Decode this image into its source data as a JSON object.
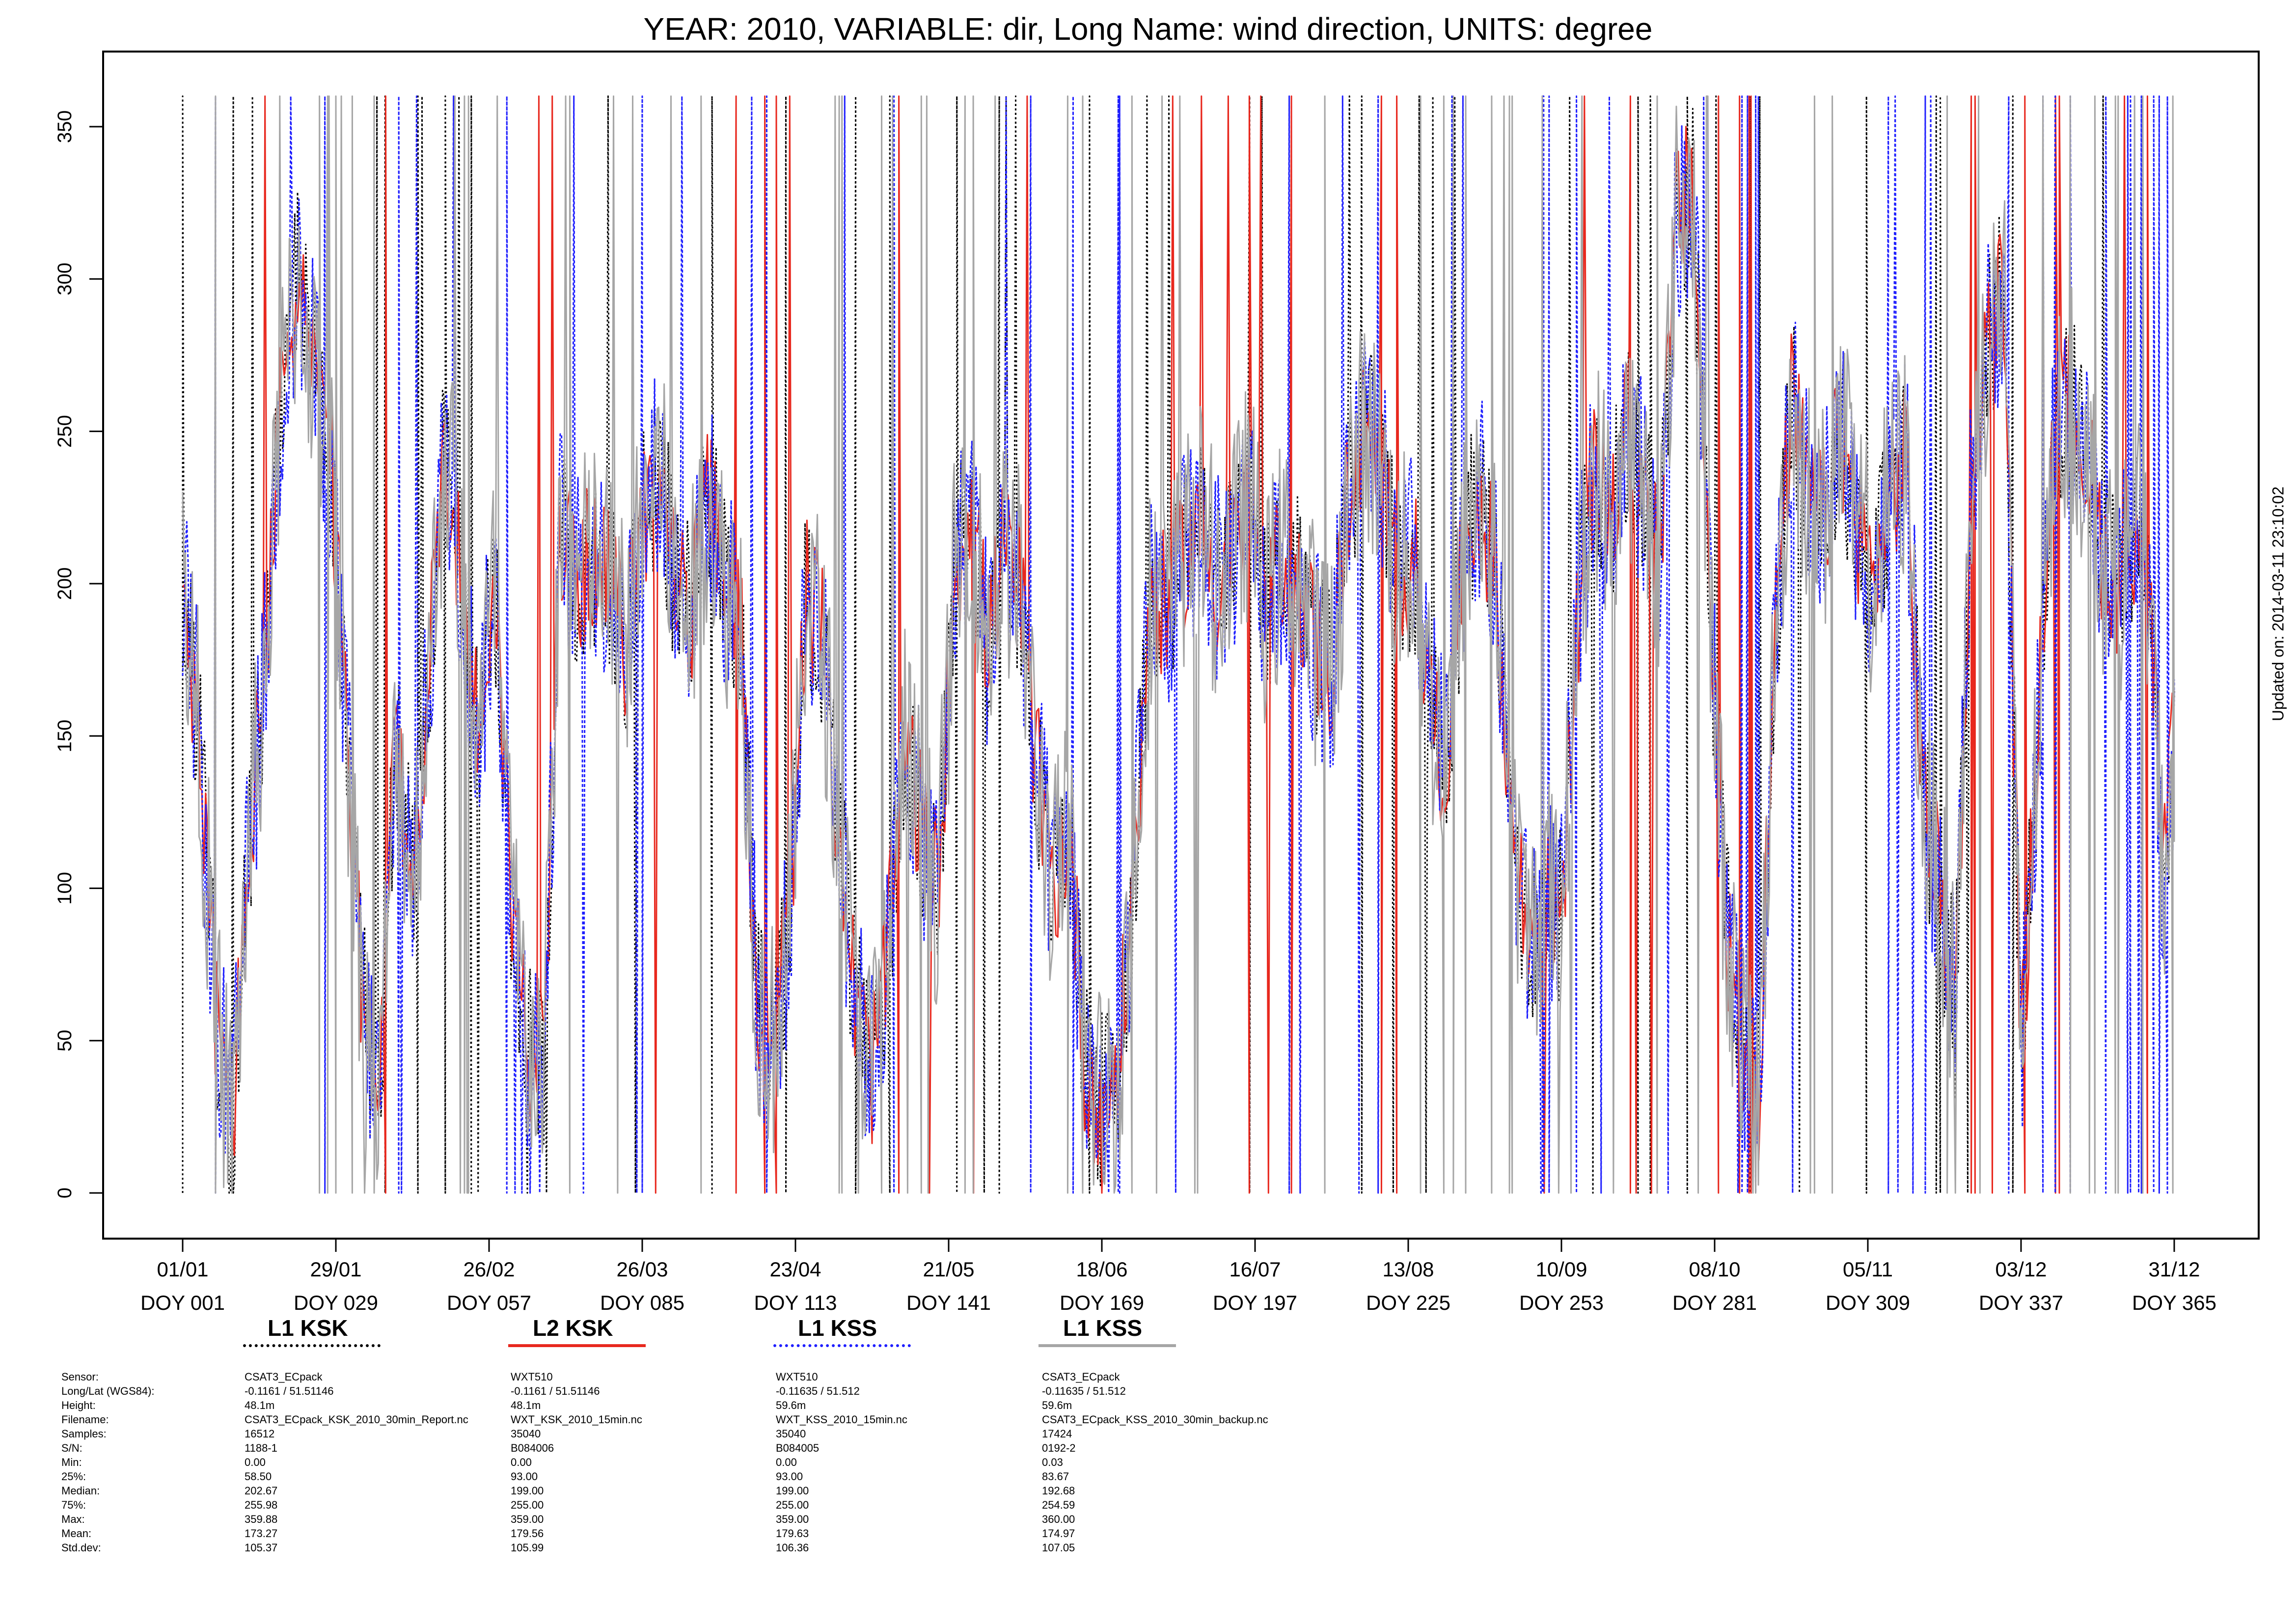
{
  "chart_data": {
    "type": "line",
    "title": "YEAR: 2010, VARIABLE: dir, Long Name: wind  direction, UNITS: degree",
    "xlabel": "",
    "ylabel": "",
    "xlim": [
      1,
      365
    ],
    "ylim": [
      0,
      360
    ],
    "y_ticks": [
      0,
      50,
      100,
      150,
      200,
      250,
      300,
      350
    ],
    "x_ticks": [
      {
        "doy": 1,
        "date": "01/01",
        "label": "DOY 001"
      },
      {
        "doy": 29,
        "date": "29/01",
        "label": "DOY 029"
      },
      {
        "doy": 57,
        "date": "26/02",
        "label": "DOY 057"
      },
      {
        "doy": 85,
        "date": "26/03",
        "label": "DOY 085"
      },
      {
        "doy": 113,
        "date": "23/04",
        "label": "DOY 113"
      },
      {
        "doy": 141,
        "date": "21/05",
        "label": "DOY 141"
      },
      {
        "doy": 169,
        "date": "18/06",
        "label": "DOY 169"
      },
      {
        "doy": 197,
        "date": "16/07",
        "label": "DOY 197"
      },
      {
        "doy": 225,
        "date": "13/08",
        "label": "DOY 225"
      },
      {
        "doy": 253,
        "date": "10/09",
        "label": "DOY 253"
      },
      {
        "doy": 281,
        "date": "08/10",
        "label": "DOY 281"
      },
      {
        "doy": 309,
        "date": "05/11",
        "label": "DOY 309"
      },
      {
        "doy": 337,
        "date": "03/12",
        "label": "DOY 337"
      },
      {
        "doy": 365,
        "date": "31/12",
        "label": "DOY 365"
      }
    ],
    "grid": false,
    "legend_position": "bottom",
    "series": [
      {
        "name": "L1 KSK",
        "color": "#000000",
        "style": "dotted"
      },
      {
        "name": "L2 KSK",
        "color": "#e8281e",
        "style": "solid"
      },
      {
        "name": "L1 KSS",
        "color": "#1f1fff",
        "style": "dotted"
      },
      {
        "name": "L1 KSS",
        "color": "#a6a6a6",
        "style": "solid"
      }
    ],
    "approx_daily_median_deg": [
      [
        1,
        200
      ],
      [
        4,
        150
      ],
      [
        7,
        60
      ],
      [
        10,
        20
      ],
      [
        13,
        110
      ],
      [
        16,
        170
      ],
      [
        19,
        260
      ],
      [
        22,
        300
      ],
      [
        25,
        270
      ],
      [
        28,
        240
      ],
      [
        31,
        150
      ],
      [
        34,
        60
      ],
      [
        37,
        30
      ],
      [
        40,
        150
      ],
      [
        43,
        100
      ],
      [
        46,
        170
      ],
      [
        49,
        250
      ],
      [
        52,
        200
      ],
      [
        55,
        150
      ],
      [
        58,
        200
      ],
      [
        61,
        100
      ],
      [
        64,
        50
      ],
      [
        67,
        40
      ],
      [
        70,
        220
      ],
      [
        73,
        200
      ],
      [
        76,
        210
      ],
      [
        79,
        200
      ],
      [
        82,
        180
      ],
      [
        85,
        220
      ],
      [
        88,
        240
      ],
      [
        91,
        200
      ],
      [
        94,
        190
      ],
      [
        97,
        230
      ],
      [
        100,
        200
      ],
      [
        103,
        190
      ],
      [
        106,
        60
      ],
      [
        109,
        50
      ],
      [
        112,
        90
      ],
      [
        115,
        200
      ],
      [
        118,
        180
      ],
      [
        121,
        120
      ],
      [
        124,
        60
      ],
      [
        127,
        40
      ],
      [
        130,
        80
      ],
      [
        133,
        150
      ],
      [
        136,
        120
      ],
      [
        139,
        100
      ],
      [
        142,
        200
      ],
      [
        145,
        230
      ],
      [
        148,
        180
      ],
      [
        151,
        210
      ],
      [
        154,
        200
      ],
      [
        157,
        140
      ],
      [
        160,
        100
      ],
      [
        163,
        120
      ],
      [
        166,
        40
      ],
      [
        169,
        30
      ],
      [
        172,
        40
      ],
      [
        175,
        110
      ],
      [
        178,
        200
      ],
      [
        181,
        190
      ],
      [
        184,
        210
      ],
      [
        187,
        220
      ],
      [
        190,
        200
      ],
      [
        193,
        210
      ],
      [
        196,
        230
      ],
      [
        199,
        190
      ],
      [
        202,
        210
      ],
      [
        205,
        200
      ],
      [
        208,
        180
      ],
      [
        211,
        170
      ],
      [
        214,
        230
      ],
      [
        217,
        250
      ],
      [
        220,
        240
      ],
      [
        223,
        200
      ],
      [
        226,
        210
      ],
      [
        229,
        160
      ],
      [
        232,
        140
      ],
      [
        235,
        210
      ],
      [
        238,
        230
      ],
      [
        241,
        200
      ],
      [
        244,
        120
      ],
      [
        247,
        80
      ],
      [
        250,
        100
      ],
      [
        253,
        90
      ],
      [
        256,
        190
      ],
      [
        259,
        240
      ],
      [
        262,
        220
      ],
      [
        265,
        250
      ],
      [
        268,
        230
      ],
      [
        271,
        210
      ],
      [
        274,
        320
      ],
      [
        277,
        330
      ],
      [
        280,
        200
      ],
      [
        283,
        90
      ],
      [
        286,
        50
      ],
      [
        289,
        30
      ],
      [
        292,
        180
      ],
      [
        295,
        260
      ],
      [
        298,
        230
      ],
      [
        301,
        220
      ],
      [
        304,
        250
      ],
      [
        307,
        220
      ],
      [
        310,
        200
      ],
      [
        313,
        230
      ],
      [
        316,
        240
      ],
      [
        319,
        130
      ],
      [
        322,
        100
      ],
      [
        325,
        60
      ],
      [
        328,
        240
      ],
      [
        331,
        280
      ],
      [
        334,
        300
      ],
      [
        337,
        40
      ],
      [
        340,
        150
      ],
      [
        343,
        250
      ],
      [
        346,
        260
      ],
      [
        349,
        240
      ],
      [
        352,
        210
      ],
      [
        355,
        200
      ],
      [
        358,
        220
      ],
      [
        361,
        180
      ],
      [
        363,
        100
      ],
      [
        365,
        150
      ]
    ],
    "annotations": [
      "Updated on: 2014-03-11 23:10:02"
    ]
  },
  "legend": [
    {
      "label": "L1 KSK",
      "color": "#000000",
      "style": "dotted"
    },
    {
      "label": "L2 KSK",
      "color": "#e8281e",
      "style": "solid"
    },
    {
      "label": "L1 KSS",
      "color": "#1f1fff",
      "style": "dotted"
    },
    {
      "label": "L1 KSS",
      "color": "#a6a6a6",
      "style": "solid"
    }
  ],
  "stats": {
    "row_labels": [
      "Sensor:",
      "Long/Lat (WGS84):",
      "Height:",
      "Filename:",
      "Samples:",
      "S/N:",
      "Min:",
      "25%:",
      "Median:",
      "75%:",
      "Max:",
      "Mean:",
      "Std.dev:"
    ],
    "columns": [
      [
        "CSAT3_ECpack",
        "-0.1161 / 51.51146",
        "48.1m",
        "CSAT3_ECpack_KSK_2010_30min_Report.nc",
        "16512",
        "1188-1",
        "0.00",
        "58.50",
        "202.67",
        "255.98",
        "359.88",
        "173.27",
        "105.37"
      ],
      [
        "WXT510",
        "-0.1161 / 51.51146",
        "48.1m",
        "WXT_KSK_2010_15min.nc",
        "35040",
        "B084006",
        "0.00",
        "93.00",
        "199.00",
        "255.00",
        "359.00",
        "179.56",
        "105.99"
      ],
      [
        "WXT510",
        "-0.11635 / 51.512",
        "59.6m",
        "WXT_KSS_2010_15min.nc",
        "35040",
        "B084005",
        "0.00",
        "93.00",
        "199.00",
        "255.00",
        "359.00",
        "179.63",
        "106.36"
      ],
      [
        "CSAT3_ECpack",
        "-0.11635 / 51.512",
        "59.6m",
        "CSAT3_ECpack_KSS_2010_30min_backup.nc",
        "17424",
        "0192-2",
        "0.03",
        "83.67",
        "192.68",
        "254.59",
        "360.00",
        "174.97",
        "107.05"
      ]
    ]
  },
  "updated": "Updated on: 2014-03-11 23:10:02"
}
